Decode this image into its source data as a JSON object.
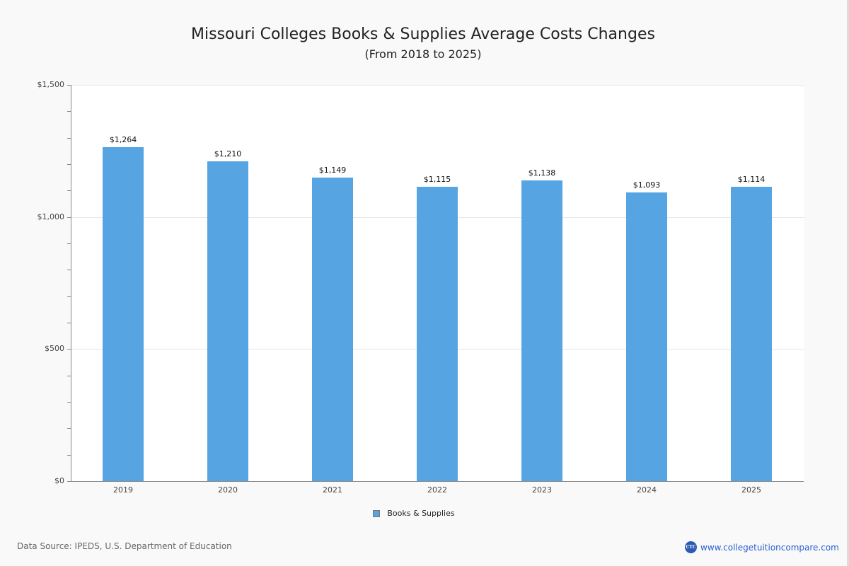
{
  "header": {
    "title": "Missouri Colleges  Books & Supplies Average Costs Changes",
    "subtitle": "(From 2018 to 2025)"
  },
  "yaxis": {
    "major_labels": [
      "$1,500",
      "$1,000",
      "$500",
      "$0"
    ]
  },
  "legend": {
    "label": "Books & Supplies"
  },
  "footer": {
    "source": "Data Source: IPEDS, U.S. Department of Education",
    "brand_logo": "CTC",
    "brand_url": "www.collegetuitioncompare.com"
  },
  "colors": {
    "bar": "#56a5e2",
    "background": "#f9f9f9",
    "brand": "#2a5fd0"
  },
  "chart_data": {
    "type": "bar",
    "title": "Missouri Colleges  Books & Supplies Average Costs Changes",
    "subtitle": "(From 2018 to 2025)",
    "categories": [
      "2019",
      "2020",
      "2021",
      "2022",
      "2023",
      "2024",
      "2025"
    ],
    "series": [
      {
        "name": "Books & Supplies",
        "values": [
          1264,
          1210,
          1149,
          1115,
          1138,
          1093,
          1114
        ],
        "labels": [
          "$1,264",
          "$1,210",
          "$1,149",
          "$1,115",
          "$1,138",
          "$1,093",
          "$1,114"
        ]
      }
    ],
    "xlabel": "",
    "ylabel": "",
    "ylim": [
      0,
      1500
    ],
    "yticks": [
      0,
      500,
      1000,
      1500
    ],
    "ytick_labels": [
      "$0",
      "$500",
      "$1,000",
      "$1,500"
    ],
    "minor_tick_interval": 100,
    "grid": true,
    "legend_position": "bottom"
  }
}
